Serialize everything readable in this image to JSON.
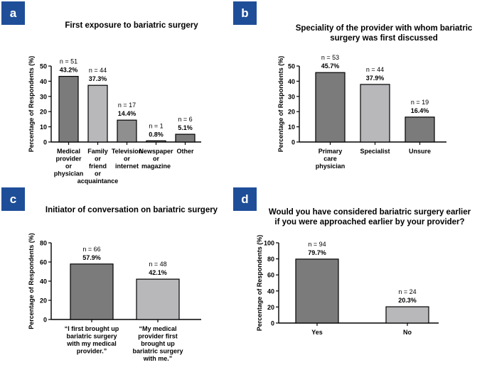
{
  "panels": [
    {
      "badge": "a",
      "title_lines": [
        "First exposure to bariatric surgery"
      ],
      "chart_data": {
        "type": "bar",
        "ylabel": "Percentage of Respondents (%)",
        "ylim": [
          0,
          50
        ],
        "yticks": [
          0,
          10,
          20,
          30,
          40,
          50
        ],
        "categories": [
          [
            "Medical",
            "provider",
            "or",
            "physician"
          ],
          [
            "Family",
            "or",
            "friend",
            "or",
            "acquaintance"
          ],
          [
            "Television",
            "or",
            "internet"
          ],
          [
            "Newspaper",
            "or",
            "magazine"
          ],
          [
            "Other"
          ]
        ],
        "values": [
          43.2,
          37.3,
          14.4,
          0.8,
          5.1
        ],
        "n_labels": [
          "n = 51",
          "n = 44",
          "n = 17",
          "n = 1",
          "n = 6"
        ],
        "pct_labels": [
          "43.2%",
          "37.3%",
          "14.4%",
          "0.8%",
          "5.1%"
        ],
        "colors": [
          "#7b7b7b",
          "#b8b8bb",
          "#8f8f8f",
          "#9a9a9a",
          "#7b7b7b"
        ]
      }
    },
    {
      "badge": "b",
      "title_lines": [
        "Speciality of the provider with whom bariatric",
        "surgery was first discussed"
      ],
      "chart_data": {
        "type": "bar",
        "ylabel": "Percentage of Respondents (%)",
        "ylim": [
          0,
          50
        ],
        "yticks": [
          0,
          10,
          20,
          30,
          40,
          50
        ],
        "categories": [
          [
            "Primary",
            "care",
            "physician"
          ],
          [
            "Specialist"
          ],
          [
            "Unsure"
          ]
        ],
        "values": [
          45.7,
          37.9,
          16.4
        ],
        "n_labels": [
          "n = 53",
          "n = 44",
          "n = 19"
        ],
        "pct_labels": [
          "45.7%",
          "37.9%",
          "16.4%"
        ],
        "colors": [
          "#7b7b7b",
          "#b8b8bb",
          "#7b7b7b"
        ]
      }
    },
    {
      "badge": "c",
      "title_lines": [
        "Initiator of conversation on bariatric surgery"
      ],
      "chart_data": {
        "type": "bar",
        "ylabel": "Percentage of Respondents (%)",
        "ylim": [
          0,
          80
        ],
        "yticks": [
          0,
          20,
          40,
          60,
          80
        ],
        "categories": [
          [
            "“I first brought up",
            "bariatric surgery",
            "with my medical",
            "provider.”"
          ],
          [
            "“My medical",
            "provider first",
            "brought up",
            "bariatric surgery",
            "with me.”"
          ]
        ],
        "values": [
          57.9,
          42.1
        ],
        "n_labels": [
          "n = 66",
          "n = 48"
        ],
        "pct_labels": [
          "57.9%",
          "42.1%"
        ],
        "colors": [
          "#7b7b7b",
          "#b8b8bb"
        ]
      }
    },
    {
      "badge": "d",
      "title_lines": [
        "Would you have considered bariatric surgery earlier",
        "if you were approached earlier by your provider?"
      ],
      "chart_data": {
        "type": "bar",
        "ylabel": "Percentage of Respondents (%)",
        "ylim": [
          0,
          100
        ],
        "yticks": [
          0,
          20,
          40,
          60,
          80,
          100
        ],
        "categories": [
          [
            "Yes"
          ],
          [
            "No"
          ]
        ],
        "values": [
          79.7,
          20.3
        ],
        "n_labels": [
          "n = 94",
          "n = 24"
        ],
        "pct_labels": [
          "79.7%",
          "20.3%"
        ],
        "colors": [
          "#7b7b7b",
          "#b8b8bb"
        ]
      }
    }
  ]
}
